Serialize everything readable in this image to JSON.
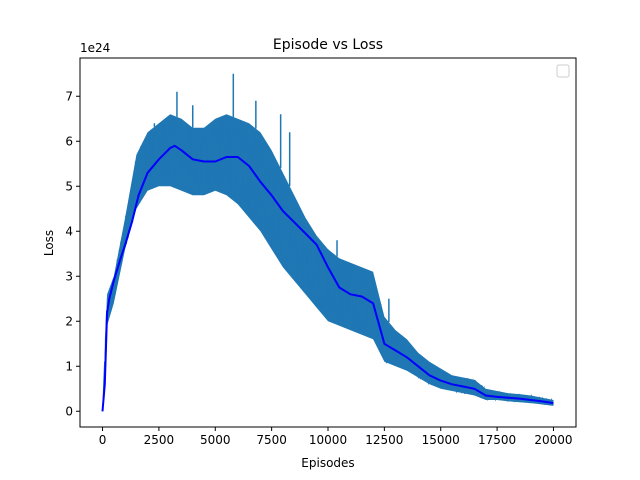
{
  "chart_data": {
    "type": "line",
    "title": "Episode vs Loss",
    "xlabel": "Episodes",
    "ylabel": "Loss",
    "y_offset_label": "1e24",
    "y_scale_note": "values in units of 1e24",
    "xlim": [
      -1000,
      21000
    ],
    "ylim": [
      -0.35,
      7.85
    ],
    "x_ticks": [
      0,
      2500,
      5000,
      7500,
      10000,
      12500,
      15000,
      17500,
      20000
    ],
    "x_tick_labels": [
      "0",
      "2500",
      "5000",
      "7500",
      "10000",
      "12500",
      "15000",
      "17500",
      "20000"
    ],
    "y_ticks": [
      0,
      1,
      2,
      3,
      4,
      5,
      6,
      7
    ],
    "y_tick_labels": [
      "0",
      "1",
      "2",
      "3",
      "4",
      "5",
      "6",
      "7"
    ],
    "grid": false,
    "legend": {
      "placement": "top-right",
      "entries": []
    },
    "series": [
      {
        "role": "raw",
        "color": "#1f77b4",
        "x": [
          0,
          200,
          500,
          1000,
          1500,
          2000,
          2500,
          3000,
          3500,
          4000,
          4500,
          5000,
          5500,
          6000,
          6500,
          7000,
          7500,
          8000,
          8500,
          9000,
          9500,
          10000,
          10500,
          11000,
          11500,
          12000,
          12500,
          13000,
          13500,
          14000,
          14500,
          15000,
          15500,
          16000,
          16500,
          17000,
          17500,
          18000,
          18500,
          19000,
          19500,
          20000
        ],
        "upper": [
          0.0,
          2.6,
          3.0,
          4.3,
          5.7,
          6.2,
          6.4,
          6.6,
          6.5,
          6.3,
          6.3,
          6.5,
          6.6,
          6.5,
          6.4,
          6.2,
          5.8,
          5.3,
          4.8,
          4.3,
          3.9,
          3.6,
          3.4,
          3.3,
          3.2,
          3.1,
          2.1,
          1.8,
          1.6,
          1.3,
          1.1,
          0.95,
          0.8,
          0.75,
          0.7,
          0.5,
          0.45,
          0.4,
          0.38,
          0.35,
          0.3,
          0.25
        ],
        "lower": [
          0.0,
          1.9,
          2.4,
          3.6,
          4.5,
          4.9,
          5.0,
          5.0,
          4.9,
          4.8,
          4.8,
          4.9,
          4.8,
          4.6,
          4.3,
          4.0,
          3.6,
          3.2,
          2.9,
          2.6,
          2.3,
          2.0,
          1.9,
          1.8,
          1.7,
          1.6,
          1.1,
          1.0,
          0.9,
          0.75,
          0.6,
          0.5,
          0.45,
          0.4,
          0.35,
          0.25,
          0.25,
          0.22,
          0.2,
          0.18,
          0.15,
          0.12
        ],
        "spikes": [
          [
            2300,
            6.4
          ],
          [
            3300,
            7.1
          ],
          [
            4000,
            6.8
          ],
          [
            5800,
            7.5
          ],
          [
            6800,
            6.9
          ],
          [
            7900,
            6.6
          ],
          [
            8300,
            6.2
          ],
          [
            10400,
            3.8
          ],
          [
            12700,
            2.5
          ]
        ]
      },
      {
        "role": "smoothed",
        "color": "#0000ff",
        "x": [
          0,
          100,
          200,
          300,
          500,
          800,
          1000,
          1300,
          1600,
          2000,
          2500,
          3000,
          3200,
          3500,
          4000,
          4500,
          5000,
          5500,
          6000,
          6500,
          7000,
          7500,
          8000,
          8500,
          9000,
          9500,
          10000,
          10500,
          11000,
          11500,
          12000,
          12500,
          13000,
          13500,
          14000,
          14500,
          15000,
          15500,
          16000,
          16500,
          17000,
          17500,
          18000,
          18500,
          19000,
          19500,
          20000
        ],
        "y": [
          0.0,
          0.6,
          2.2,
          2.5,
          2.9,
          3.4,
          3.7,
          4.2,
          4.8,
          5.3,
          5.6,
          5.85,
          5.9,
          5.8,
          5.6,
          5.55,
          5.55,
          5.65,
          5.65,
          5.45,
          5.1,
          4.8,
          4.45,
          4.2,
          3.95,
          3.7,
          3.2,
          2.75,
          2.6,
          2.55,
          2.4,
          1.5,
          1.35,
          1.2,
          1.0,
          0.8,
          0.68,
          0.6,
          0.55,
          0.5,
          0.35,
          0.32,
          0.3,
          0.28,
          0.25,
          0.22,
          0.18
        ]
      }
    ]
  }
}
